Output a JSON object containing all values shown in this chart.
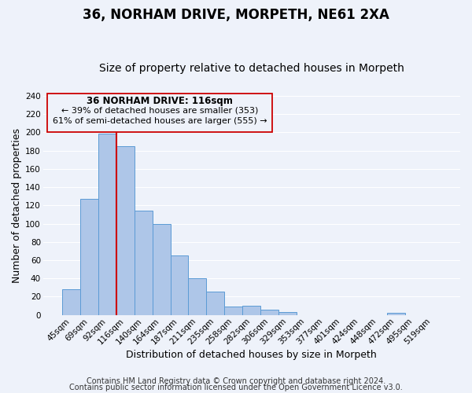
{
  "title": "36, NORHAM DRIVE, MORPETH, NE61 2XA",
  "subtitle": "Size of property relative to detached houses in Morpeth",
  "xlabel": "Distribution of detached houses by size in Morpeth",
  "ylabel": "Number of detached properties",
  "bar_labels": [
    "45sqm",
    "69sqm",
    "92sqm",
    "116sqm",
    "140sqm",
    "164sqm",
    "187sqm",
    "211sqm",
    "235sqm",
    "258sqm",
    "282sqm",
    "306sqm",
    "329sqm",
    "353sqm",
    "377sqm",
    "401sqm",
    "424sqm",
    "448sqm",
    "472sqm",
    "495sqm",
    "519sqm"
  ],
  "bar_heights": [
    28,
    127,
    199,
    185,
    114,
    100,
    65,
    40,
    26,
    9,
    10,
    6,
    3,
    0,
    0,
    0,
    0,
    0,
    2,
    0,
    0
  ],
  "bar_color": "#aec6e8",
  "bar_edge_color": "#5b9bd5",
  "vline_index": 3,
  "vline_color": "#cc0000",
  "ylim": [
    0,
    240
  ],
  "yticks": [
    0,
    20,
    40,
    60,
    80,
    100,
    120,
    140,
    160,
    180,
    200,
    220,
    240
  ],
  "annotation_title": "36 NORHAM DRIVE: 116sqm",
  "annotation_line1": "← 39% of detached houses are smaller (353)",
  "annotation_line2": "61% of semi-detached houses are larger (555) →",
  "footer_line1": "Contains HM Land Registry data © Crown copyright and database right 2024.",
  "footer_line2": "Contains public sector information licensed under the Open Government Licence v3.0.",
  "background_color": "#eef2fa",
  "grid_color": "#ffffff",
  "title_fontsize": 12,
  "subtitle_fontsize": 10,
  "axis_label_fontsize": 9,
  "tick_fontsize": 7.5,
  "footer_fontsize": 7
}
